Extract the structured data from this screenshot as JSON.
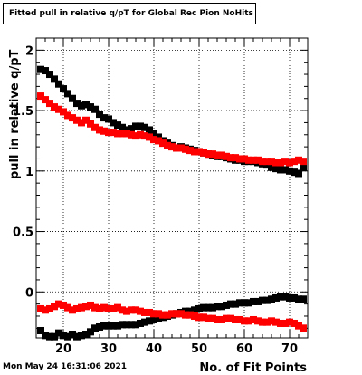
{
  "footer_text": "Mon May 24 16:31:06 2021",
  "chart_data": {
    "type": "scatter",
    "title": "Fitted pull in relative q/pT for Global Rec Pion NoHits",
    "xlabel": "No. of Fit Points",
    "ylabel": "pull in relative q/pT",
    "xlim": [
      14,
      74
    ],
    "ylim": [
      -0.38,
      2.1
    ],
    "x_ticks": [
      20,
      30,
      40,
      50,
      60,
      70
    ],
    "y_ticks": [
      0,
      0.5,
      1,
      1.5,
      2
    ],
    "y_tick_labels": [
      "0",
      "0.5",
      "1",
      "1.5",
      "2"
    ],
    "grid": true,
    "legend": "none",
    "colors": {
      "black_series": "#000000",
      "red_series": "#ff0000"
    },
    "series": [
      {
        "color": "#000000",
        "x": [
          15,
          16,
          17,
          18,
          19,
          20,
          21,
          22,
          23,
          24,
          25,
          26,
          27,
          28,
          29,
          30,
          31,
          32,
          33,
          34,
          35,
          36,
          37,
          38,
          39,
          40,
          41,
          42,
          43,
          44,
          45,
          46,
          47,
          48,
          49,
          50,
          51,
          52,
          53,
          54,
          55,
          56,
          57,
          58,
          59,
          60,
          61,
          62,
          63,
          64,
          65,
          66,
          67,
          68,
          69,
          70,
          71,
          72,
          73
        ],
        "values": [
          1.84,
          1.83,
          1.8,
          1.76,
          1.72,
          1.68,
          1.64,
          1.6,
          1.56,
          1.54,
          1.55,
          1.53,
          1.51,
          1.47,
          1.44,
          1.43,
          1.4,
          1.38,
          1.36,
          1.34,
          1.35,
          1.37,
          1.37,
          1.36,
          1.34,
          1.31,
          1.28,
          1.25,
          1.23,
          1.21,
          1.19,
          1.2,
          1.19,
          1.18,
          1.17,
          1.16,
          1.15,
          1.14,
          1.13,
          1.12,
          1.12,
          1.11,
          1.1,
          1.09,
          1.09,
          1.08,
          1.08,
          1.08,
          1.07,
          1.06,
          1.05,
          1.03,
          1.02,
          1.01,
          1.01,
          1.0,
          0.99,
          0.98,
          1.03
        ]
      },
      {
        "color": "#ff0000",
        "x": [
          15,
          16,
          17,
          18,
          19,
          20,
          21,
          22,
          23,
          24,
          25,
          26,
          27,
          28,
          29,
          30,
          31,
          32,
          33,
          34,
          35,
          36,
          37,
          38,
          39,
          40,
          41,
          42,
          43,
          44,
          45,
          46,
          47,
          48,
          49,
          50,
          51,
          52,
          53,
          54,
          55,
          56,
          57,
          58,
          59,
          60,
          61,
          62,
          63,
          64,
          65,
          66,
          67,
          68,
          69,
          70,
          71,
          72,
          73
        ],
        "values": [
          1.62,
          1.59,
          1.56,
          1.53,
          1.51,
          1.49,
          1.46,
          1.44,
          1.42,
          1.4,
          1.42,
          1.39,
          1.36,
          1.34,
          1.33,
          1.32,
          1.32,
          1.31,
          1.31,
          1.31,
          1.3,
          1.29,
          1.3,
          1.29,
          1.28,
          1.26,
          1.25,
          1.23,
          1.21,
          1.2,
          1.19,
          1.19,
          1.18,
          1.17,
          1.16,
          1.16,
          1.15,
          1.14,
          1.14,
          1.13,
          1.13,
          1.12,
          1.11,
          1.11,
          1.1,
          1.1,
          1.09,
          1.09,
          1.09,
          1.08,
          1.08,
          1.08,
          1.07,
          1.07,
          1.08,
          1.07,
          1.08,
          1.09,
          1.08
        ]
      },
      {
        "color": "#000000",
        "x": [
          15,
          16,
          17,
          18,
          19,
          20,
          21,
          22,
          23,
          24,
          25,
          26,
          27,
          28,
          29,
          30,
          31,
          32,
          33,
          34,
          35,
          36,
          37,
          38,
          39,
          40,
          41,
          42,
          43,
          44,
          45,
          46,
          47,
          48,
          49,
          50,
          51,
          52,
          53,
          54,
          55,
          56,
          57,
          58,
          59,
          60,
          61,
          62,
          63,
          64,
          65,
          66,
          67,
          68,
          69,
          70,
          71,
          72,
          73
        ],
        "values": [
          -0.32,
          -0.36,
          -0.37,
          -0.37,
          -0.34,
          -0.36,
          -0.37,
          -0.35,
          -0.37,
          -0.36,
          -0.35,
          -0.33,
          -0.3,
          -0.29,
          -0.28,
          -0.28,
          -0.28,
          -0.28,
          -0.27,
          -0.27,
          -0.27,
          -0.27,
          -0.26,
          -0.25,
          -0.24,
          -0.23,
          -0.22,
          -0.21,
          -0.2,
          -0.19,
          -0.18,
          -0.17,
          -0.16,
          -0.16,
          -0.15,
          -0.14,
          -0.13,
          -0.13,
          -0.13,
          -0.12,
          -0.12,
          -0.11,
          -0.1,
          -0.1,
          -0.09,
          -0.09,
          -0.09,
          -0.08,
          -0.08,
          -0.07,
          -0.07,
          -0.06,
          -0.05,
          -0.04,
          -0.04,
          -0.05,
          -0.05,
          -0.06,
          -0.06
        ]
      },
      {
        "color": "#ff0000",
        "x": [
          15,
          16,
          17,
          18,
          19,
          20,
          21,
          22,
          23,
          24,
          25,
          26,
          27,
          28,
          29,
          30,
          31,
          32,
          33,
          34,
          35,
          36,
          37,
          38,
          39,
          40,
          41,
          42,
          43,
          44,
          45,
          46,
          47,
          48,
          49,
          50,
          51,
          52,
          53,
          54,
          55,
          56,
          57,
          58,
          59,
          60,
          61,
          62,
          63,
          64,
          65,
          66,
          67,
          68,
          69,
          70,
          71,
          72,
          73
        ],
        "values": [
          -0.14,
          -0.15,
          -0.14,
          -0.12,
          -0.1,
          -0.11,
          -0.13,
          -0.15,
          -0.14,
          -0.13,
          -0.12,
          -0.11,
          -0.13,
          -0.14,
          -0.13,
          -0.14,
          -0.14,
          -0.13,
          -0.15,
          -0.16,
          -0.15,
          -0.15,
          -0.16,
          -0.17,
          -0.17,
          -0.18,
          -0.18,
          -0.19,
          -0.19,
          -0.18,
          -0.18,
          -0.18,
          -0.19,
          -0.19,
          -0.2,
          -0.21,
          -0.21,
          -0.22,
          -0.22,
          -0.23,
          -0.23,
          -0.22,
          -0.22,
          -0.23,
          -0.23,
          -0.24,
          -0.24,
          -0.23,
          -0.24,
          -0.25,
          -0.25,
          -0.24,
          -0.25,
          -0.26,
          -0.26,
          -0.25,
          -0.26,
          -0.28,
          -0.3
        ]
      }
    ]
  }
}
